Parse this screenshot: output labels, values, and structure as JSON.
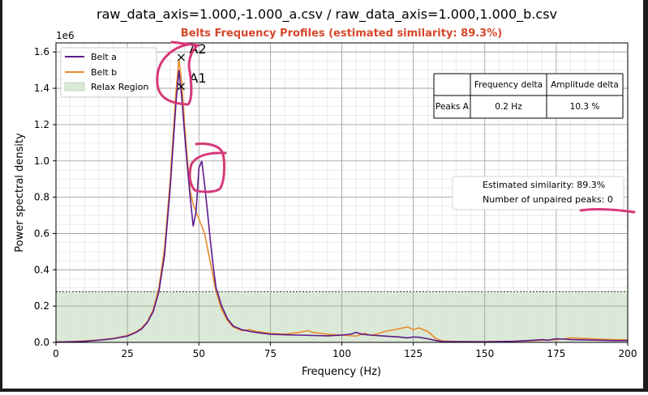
{
  "figure_title": "raw_data_axis=1.000,-1.000_a.csv / raw_data_axis=1.000,1.000_b.csv",
  "chart_data": {
    "type": "line",
    "title": "Belts Frequency Profiles (estimated similarity: 89.3%)",
    "title_color": "#d5472b",
    "xlabel": "Frequency (Hz)",
    "ylabel": "Power spectral density",
    "y_offset_label": "1e6",
    "xlim": [
      0,
      200
    ],
    "ylim": [
      0,
      1650000
    ],
    "x_ticks": [
      0,
      25,
      50,
      75,
      100,
      125,
      150,
      175,
      200
    ],
    "x_tick_labels": [
      "0",
      "25",
      "50",
      "75",
      "100",
      "125",
      "150",
      "175",
      "200"
    ],
    "y_ticks": [
      0,
      200000,
      400000,
      600000,
      800000,
      1000000,
      1200000,
      1400000,
      1600000
    ],
    "y_tick_labels": [
      "0.0",
      "0.2",
      "0.4",
      "0.6",
      "0.8",
      "1.0",
      "1.2",
      "1.4",
      "1.6"
    ],
    "grid": true,
    "legend_position": "upper-left",
    "series": [
      {
        "name": "Belt a",
        "color": "#5c1a8c",
        "x": [
          0,
          5,
          10,
          15,
          20,
          25,
          28,
          30,
          32,
          34,
          36,
          38,
          40,
          42,
          43,
          44,
          45,
          46,
          47,
          48,
          49,
          50,
          51,
          52,
          53,
          54,
          55,
          56,
          58,
          60,
          62,
          65,
          68,
          70,
          75,
          80,
          85,
          90,
          95,
          100,
          103,
          105,
          107,
          110,
          115,
          120,
          123,
          125,
          127,
          130,
          133,
          135,
          140,
          150,
          160,
          165,
          170,
          172,
          175,
          178,
          180,
          185,
          190,
          195,
          200
        ],
        "y": [
          2000,
          3000,
          6000,
          12000,
          20000,
          35000,
          55000,
          75000,
          110000,
          170000,
          280000,
          480000,
          860000,
          1320000,
          1500000,
          1350000,
          1150000,
          960000,
          790000,
          640000,
          720000,
          960000,
          1000000,
          870000,
          720000,
          560000,
          420000,
          300000,
          200000,
          130000,
          90000,
          70000,
          60000,
          55000,
          45000,
          42000,
          40000,
          38000,
          36000,
          40000,
          45000,
          55000,
          45000,
          40000,
          35000,
          30000,
          25000,
          30000,
          28000,
          20000,
          10000,
          5000,
          4000,
          3000,
          6000,
          10000,
          15000,
          12000,
          20000,
          18000,
          15000,
          14000,
          12000,
          10000,
          10000
        ]
      },
      {
        "name": "Belt b",
        "color": "#e98c2a",
        "x": [
          0,
          5,
          10,
          15,
          20,
          25,
          28,
          30,
          32,
          34,
          36,
          38,
          40,
          42,
          43,
          44,
          45,
          46,
          47,
          48,
          49,
          50,
          51,
          52,
          53,
          54,
          55,
          56,
          58,
          60,
          62,
          65,
          68,
          70,
          75,
          80,
          85,
          88,
          90,
          95,
          100,
          105,
          108,
          110,
          112,
          115,
          120,
          123,
          125,
          127,
          130,
          133,
          135,
          140,
          150,
          160,
          165,
          170,
          175,
          178,
          180,
          185,
          190,
          195,
          200
        ],
        "y": [
          2000,
          4000,
          8000,
          14000,
          22000,
          38000,
          58000,
          80000,
          115000,
          180000,
          300000,
          520000,
          900000,
          1380000,
          1560000,
          1430000,
          1200000,
          1000000,
          830000,
          760000,
          720000,
          680000,
          640000,
          600000,
          520000,
          440000,
          360000,
          280000,
          180000,
          120000,
          85000,
          65000,
          70000,
          60000,
          50000,
          45000,
          55000,
          65000,
          55000,
          45000,
          40000,
          35000,
          50000,
          40000,
          45000,
          60000,
          75000,
          85000,
          70000,
          80000,
          60000,
          20000,
          8000,
          5000,
          4000,
          6000,
          8000,
          12000,
          15000,
          20000,
          25000,
          22000,
          18000,
          15000,
          14000
        ]
      }
    ],
    "relax_region": {
      "label": "Relax Region",
      "color": "#dbe9d7",
      "threshold": 280000
    },
    "peak_markers": [
      {
        "label": "A2",
        "x": 43.8,
        "y": 1570000
      },
      {
        "label": "A1",
        "x": 43.8,
        "y": 1410000
      }
    ],
    "table": {
      "columns": [
        "",
        "Frequency delta",
        "Amplitude delta"
      ],
      "rows": [
        [
          "Peaks A",
          "0.2 Hz",
          "10.3 %"
        ]
      ]
    },
    "info_box": {
      "lines": [
        "Estimated similarity: 89.3%",
        "Number of unpaired peaks: 0"
      ]
    },
    "annotations": {
      "scribble_color": "#d63979"
    }
  }
}
